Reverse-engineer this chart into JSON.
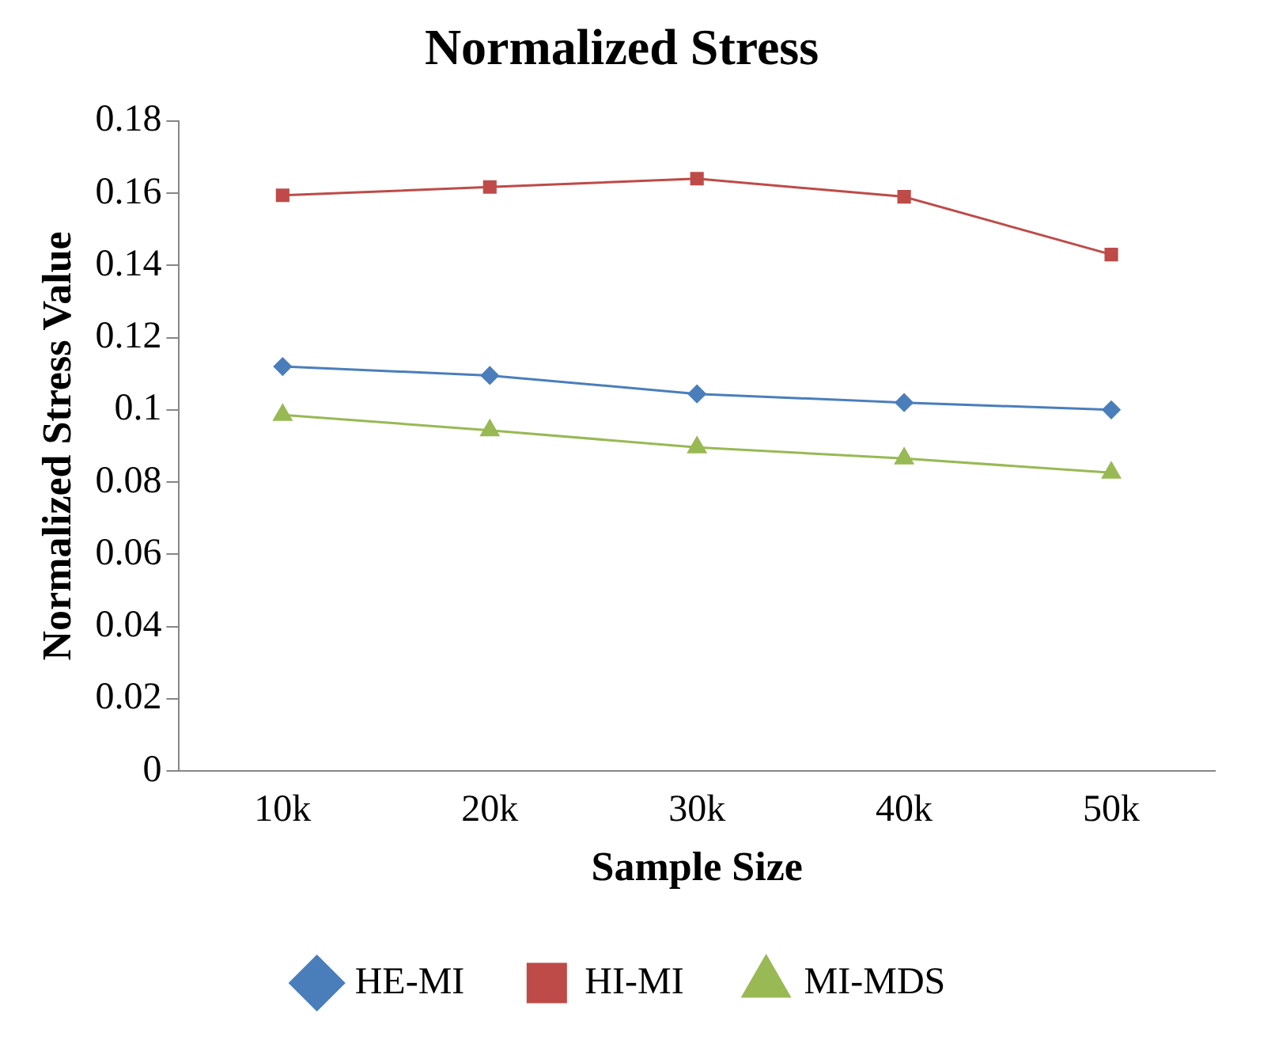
{
  "chart_data": {
    "type": "line",
    "title": "Normalized Stress",
    "xlabel": "Sample Size",
    "ylabel": "Normalized Stress Value",
    "categories": [
      "10k",
      "20k",
      "30k",
      "40k",
      "50k"
    ],
    "series": [
      {
        "name": "HE-MI",
        "color": "#4a7ebb",
        "marker": "diamond",
        "values": [
          0.112,
          0.1095,
          0.1044,
          0.102,
          0.1
        ]
      },
      {
        "name": "HI-MI",
        "color": "#be4b48",
        "marker": "square",
        "values": [
          0.1594,
          0.1617,
          0.164,
          0.159,
          0.143
        ]
      },
      {
        "name": "MI-MDS",
        "color": "#98b954",
        "marker": "triangle",
        "values": [
          0.0986,
          0.0943,
          0.0896,
          0.0865,
          0.0826
        ]
      }
    ],
    "ylim": [
      0,
      0.18
    ],
    "yticks": [
      0,
      0.02,
      0.04,
      0.06,
      0.08,
      0.1,
      0.12,
      0.14,
      0.16,
      0.18
    ],
    "grid": false,
    "legend": "bottom",
    "line_style": "solid"
  }
}
